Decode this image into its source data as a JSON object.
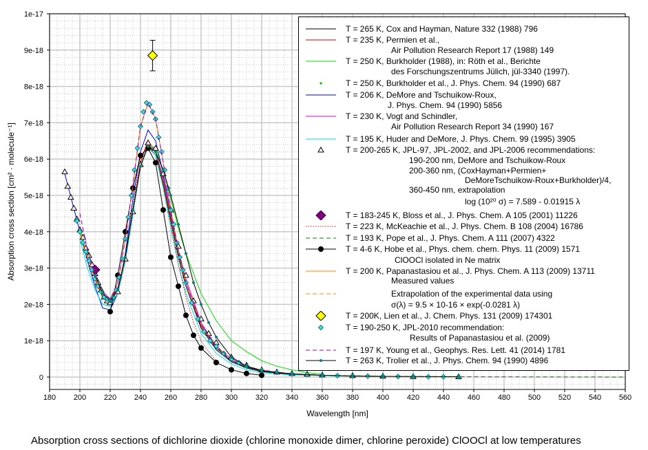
{
  "caption": "Absorption cross sections of dichlorine dioxide (chlorine  monoxide dimer, chlorine peroxide) ClOOCl at low temperatures",
  "chart_data": {
    "type": "line",
    "title": "Absorption cross sections of dichlorine dioxide (chlorine  monoxide dimer, chlorine peroxide) ClOOCl at low temperatures",
    "xlabel": "Wavelength [nm]",
    "ylabel": "Absorption cross section [cm² · molecule⁻¹]",
    "xlim": [
      180,
      560
    ],
    "ylim": [
      0,
      10
    ],
    "y_unit_multiplier": "1e-18",
    "x_ticks": [
      "180",
      "200",
      "220",
      "240",
      "260",
      "280",
      "300",
      "320",
      "340",
      "360",
      "380",
      "400",
      "420",
      "440",
      "460",
      "480",
      "500",
      "520",
      "540",
      "560"
    ],
    "y_ticks": [
      "0",
      "1e-18",
      "2e-18",
      "3e-18",
      "4e-18",
      "5e-18",
      "6e-18",
      "7e-18",
      "8e-18",
      "9e-18",
      "1e-17"
    ],
    "grid": true,
    "legend_position": "top-right",
    "series": [
      {
        "name": "cox",
        "color": "#000000",
        "style": "solid",
        "marker": "none",
        "x": [
          200,
          205,
          210,
          215,
          220,
          225,
          230,
          235,
          240,
          245,
          250,
          255,
          260,
          265,
          270,
          280,
          290,
          300,
          310,
          320,
          340,
          360,
          380,
          400
        ],
        "y": [
          4.0,
          3.3,
          2.7,
          2.2,
          2.0,
          2.3,
          3.2,
          4.5,
          5.8,
          6.35,
          6.1,
          5.3,
          4.3,
          3.3,
          2.5,
          1.35,
          0.75,
          0.42,
          0.25,
          0.15,
          0.07,
          0.04,
          0.03,
          0.02
        ]
      },
      {
        "name": "permien",
        "color": "#e00000",
        "style": "solid",
        "marker": "none",
        "x": [
          210,
          215,
          220,
          225,
          230,
          235,
          240,
          245,
          250,
          255,
          260,
          265,
          270,
          280,
          290,
          300,
          310,
          320,
          340
        ],
        "y": [
          2.7,
          2.3,
          2.05,
          2.4,
          3.3,
          4.6,
          5.9,
          6.5,
          6.2,
          5.4,
          4.4,
          3.4,
          2.6,
          1.4,
          0.8,
          0.45,
          0.27,
          0.17,
          0.08
        ]
      },
      {
        "name": "burkholder-1988",
        "color": "#00e000",
        "style": "solid",
        "marker": "none",
        "x": [
          200,
          205,
          210,
          215,
          220,
          225,
          230,
          235,
          240,
          245,
          250,
          255,
          260,
          265,
          270,
          280,
          290,
          300,
          310,
          320,
          330,
          340,
          350,
          360
        ],
        "y": [
          4.1,
          3.4,
          2.8,
          2.3,
          2.1,
          2.4,
          3.3,
          4.6,
          5.8,
          6.4,
          6.3,
          5.7,
          4.9,
          4.1,
          3.4,
          2.3,
          1.55,
          1.0,
          0.7,
          0.45,
          0.3,
          0.2,
          0.12,
          0.08
        ]
      },
      {
        "name": "burkholder-1990",
        "color": "#00c000",
        "style": "none",
        "marker": "dot",
        "x": [
          200,
          205,
          210,
          215,
          220,
          225,
          230,
          235,
          240,
          245,
          250,
          255,
          260,
          265,
          270,
          280,
          290,
          300,
          310,
          320,
          340,
          360
        ],
        "y": [
          4.1,
          3.4,
          2.8,
          2.3,
          2.05,
          2.4,
          3.3,
          4.6,
          5.8,
          6.45,
          6.3,
          5.5,
          4.6,
          3.6,
          2.8,
          1.6,
          0.95,
          0.55,
          0.33,
          0.2,
          0.1,
          0.06
        ]
      },
      {
        "name": "demore",
        "color": "#0000e0",
        "style": "solid",
        "marker": "none",
        "x": [
          190,
          195,
          200,
          205,
          210,
          215,
          220,
          225,
          230,
          235,
          240,
          245,
          250,
          255,
          260,
          265,
          270,
          280,
          290,
          300,
          310,
          320,
          340,
          360
        ],
        "y": [
          5.6,
          4.8,
          4.0,
          3.2,
          2.5,
          1.9,
          1.85,
          2.3,
          3.4,
          4.9,
          6.2,
          6.8,
          6.5,
          5.6,
          4.5,
          3.5,
          2.6,
          1.45,
          0.8,
          0.45,
          0.27,
          0.17,
          0.08,
          0.05
        ]
      },
      {
        "name": "vogt",
        "color": "#e000e0",
        "style": "solid",
        "marker": "none",
        "x": [
          205,
          210,
          215,
          220,
          225,
          230,
          235,
          240,
          245,
          250,
          255,
          260,
          265,
          270,
          280,
          290,
          300,
          310,
          320,
          340,
          360
        ],
        "y": [
          3.5,
          2.9,
          2.35,
          2.15,
          2.45,
          3.3,
          4.6,
          5.8,
          6.4,
          6.2,
          5.5,
          4.5,
          3.5,
          2.7,
          1.5,
          0.85,
          0.5,
          0.3,
          0.18,
          0.09,
          0.05
        ]
      },
      {
        "name": "huder",
        "color": "#00e0e0",
        "style": "solid",
        "marker": "none",
        "x": [
          200,
          205,
          210,
          215,
          220,
          225,
          230,
          235,
          240,
          245,
          250,
          255,
          260,
          265,
          270,
          280,
          290,
          300,
          310,
          320,
          340,
          360,
          380,
          400
        ],
        "y": [
          3.8,
          3.0,
          2.4,
          2.0,
          1.95,
          2.3,
          3.2,
          4.5,
          5.8,
          6.4,
          6.1,
          5.2,
          4.1,
          3.1,
          2.3,
          1.2,
          0.65,
          0.36,
          0.2,
          0.12,
          0.06,
          0.04,
          0.02,
          0.01
        ]
      },
      {
        "name": "jpl-2006",
        "color": "#000000",
        "style": "none",
        "marker": "triangle",
        "x": [
          190,
          192,
          194,
          196,
          198,
          200,
          202,
          204,
          206,
          208,
          210,
          212,
          214,
          216,
          218,
          220,
          225,
          230,
          235,
          240,
          245,
          250,
          255,
          260,
          265,
          270,
          275,
          280,
          285,
          290,
          300,
          310,
          320,
          330,
          340,
          350,
          360,
          380,
          400,
          420,
          450
        ],
        "y": [
          5.65,
          5.25,
          4.95,
          4.65,
          4.35,
          4.05,
          3.85,
          3.55,
          3.35,
          3.1,
          2.85,
          2.6,
          2.4,
          2.2,
          2.1,
          2.05,
          2.35,
          3.25,
          4.55,
          5.85,
          6.45,
          6.3,
          5.6,
          4.6,
          3.6,
          2.8,
          2.1,
          1.6,
          1.2,
          0.95,
          0.55,
          0.33,
          0.2,
          0.14,
          0.1,
          0.08,
          0.06,
          0.04,
          0.025,
          0.015,
          0.01
        ]
      },
      {
        "name": "bloss",
        "color": "#800080",
        "style": "none",
        "marker": "big-diamond",
        "x": [
          210
        ],
        "y": [
          2.95
        ]
      },
      {
        "name": "mckeachie",
        "color": "#ff0000",
        "style": "dotted",
        "marker": "none",
        "x": [
          215,
          220,
          225,
          230,
          235,
          240,
          245,
          250,
          255,
          260,
          265,
          270,
          275,
          280,
          285,
          290
        ],
        "y": [
          2.4,
          2.1,
          2.45,
          3.35,
          4.7,
          6.0,
          6.5,
          6.2,
          5.3,
          4.2,
          3.1,
          2.2,
          1.5,
          1.0,
          0.7,
          0.45
        ]
      },
      {
        "name": "pope",
        "color": "#008000",
        "style": "dashed",
        "marker": "none",
        "x": [
          215,
          220,
          225,
          230,
          235,
          240,
          245,
          250,
          255,
          260,
          265,
          270,
          280,
          290,
          300,
          310,
          320,
          340,
          360,
          400,
          450,
          500,
          560
        ],
        "y": [
          2.3,
          2.1,
          2.4,
          3.3,
          4.6,
          5.8,
          6.4,
          6.2,
          5.4,
          4.4,
          3.4,
          2.6,
          1.45,
          0.82,
          0.47,
          0.28,
          0.17,
          0.08,
          0.05,
          0.02,
          0.01,
          0.005,
          0.0
        ]
      },
      {
        "name": "hobe",
        "color": "#000000",
        "style": "solid",
        "marker": "big-dot",
        "x": [
          220,
          225,
          230,
          235,
          240,
          245,
          250,
          255,
          260,
          265,
          270,
          275,
          280,
          290,
          300,
          310,
          320
        ],
        "y": [
          1.8,
          2.8,
          4.0,
          5.2,
          6.1,
          6.3,
          5.9,
          4.6,
          3.3,
          2.5,
          1.7,
          1.15,
          0.8,
          0.4,
          0.2,
          0.1,
          0.05
        ]
      },
      {
        "name": "papanastasiou-measured",
        "color": "#ff8000",
        "style": "solid",
        "marker": "none",
        "x": [
          200,
          205,
          210,
          215,
          220,
          225,
          230,
          235,
          240,
          245,
          250,
          255,
          260,
          265,
          270,
          280,
          290,
          300,
          310,
          320,
          340,
          360,
          380,
          400,
          420
        ],
        "y": [
          4.0,
          3.3,
          2.7,
          2.25,
          2.1,
          2.6,
          3.8,
          5.3,
          6.9,
          7.55,
          7.1,
          5.9,
          4.6,
          3.5,
          2.6,
          1.45,
          0.85,
          0.5,
          0.3,
          0.19,
          0.09,
          0.05,
          0.03,
          0.02,
          0.01
        ]
      },
      {
        "name": "papanastasiou-extrapolation",
        "color": "#ff8000",
        "style": "dashed",
        "marker": "none",
        "x": [
          420,
          450
        ],
        "y": [
          0.007,
          0.003
        ]
      },
      {
        "name": "lien",
        "color": "#ffff00",
        "style": "none",
        "marker": "yellow-diamond",
        "x": [
          248
        ],
        "y": [
          8.85
        ],
        "error": [
          0.42
        ]
      },
      {
        "name": "jpl-2010",
        "color": "#00c0c0",
        "style": "none",
        "marker": "cyan-diamond",
        "x": [
          198,
          200,
          202,
          204,
          206,
          208,
          210,
          212,
          214,
          216,
          218,
          220,
          222,
          224,
          226,
          228,
          230,
          232,
          234,
          236,
          238,
          240,
          242,
          244,
          246,
          248,
          250,
          252,
          254,
          256,
          258,
          260,
          262,
          264,
          266,
          268,
          270,
          274,
          278,
          282,
          286,
          290,
          295,
          300,
          305,
          310,
          320,
          330,
          340,
          350,
          360,
          370,
          380,
          390,
          400,
          410,
          420,
          430,
          440,
          450
        ],
        "y": [
          4.3,
          4.0,
          3.7,
          3.45,
          3.2,
          2.95,
          2.7,
          2.5,
          2.35,
          2.2,
          2.15,
          2.1,
          2.2,
          2.4,
          2.75,
          3.25,
          3.8,
          4.4,
          5.0,
          5.7,
          6.3,
          6.9,
          7.3,
          7.55,
          7.5,
          7.3,
          7.1,
          6.6,
          6.2,
          5.7,
          5.2,
          4.6,
          4.2,
          3.7,
          3.3,
          2.95,
          2.6,
          2.05,
          1.6,
          1.25,
          1.0,
          0.85,
          0.65,
          0.5,
          0.4,
          0.3,
          0.19,
          0.13,
          0.09,
          0.07,
          0.05,
          0.04,
          0.03,
          0.025,
          0.02,
          0.015,
          0.012,
          0.01,
          0.008,
          0.006
        ]
      },
      {
        "name": "young",
        "color": "#a000a0",
        "style": "dashed",
        "marker": "none",
        "x": [
          200,
          205,
          210,
          215,
          220,
          225,
          230,
          235,
          240,
          245,
          250,
          255,
          260,
          265,
          270,
          280,
          290,
          300,
          310,
          320,
          340,
          360
        ],
        "y": [
          4.5,
          3.5,
          2.8,
          2.3,
          2.15,
          2.6,
          3.8,
          5.3,
          6.9,
          7.55,
          7.1,
          5.9,
          4.6,
          3.5,
          2.6,
          1.45,
          0.85,
          0.5,
          0.3,
          0.19,
          0.09,
          0.05
        ]
      },
      {
        "name": "trolier",
        "color": "#000000",
        "style": "solid",
        "marker": "teal-dot",
        "x": [
          210,
          215,
          220,
          225,
          230,
          235,
          240,
          245,
          250,
          255,
          260,
          265,
          270,
          275,
          280,
          285,
          290,
          300,
          310,
          320,
          330,
          340,
          360,
          380,
          400,
          420,
          450
        ],
        "y": [
          2.8,
          2.3,
          2.1,
          2.4,
          3.3,
          4.6,
          5.8,
          6.35,
          6.2,
          5.7,
          5.0,
          4.2,
          3.4,
          2.6,
          2.0,
          1.5,
          1.1,
          0.55,
          0.3,
          0.18,
          0.12,
          0.09,
          0.05,
          0.03,
          0.02,
          0.015,
          0.01
        ]
      }
    ]
  },
  "legend": [
    {
      "sample": "solid",
      "color": "#000000",
      "lines": [
        "T = 265 K, Cox and Hayman, Nature 332 (1988) 796"
      ]
    },
    {
      "sample": "solid",
      "color": "#e00000",
      "lines": [
        "T = 235 K, Permien et al.,",
        "Air Pollution Research Report 17 (1988) 149"
      ]
    },
    {
      "sample": "solid",
      "color": "#00e000",
      "lines": [
        "T = 250 K, Burkholder (1988), in: Röth et al., Berichte",
        "des Forschungszentrums Jülich, jül-3340 (1997)."
      ]
    },
    {
      "sample": "dot",
      "color": "#00c000",
      "lines": [
        "T = 250 K, Burkholder et al., J. Phys. Chem. 94 (1990) 687"
      ]
    },
    {
      "sample": "solid",
      "color": "#0000c0",
      "lines": [
        "T = 206 K, DeMore and Tschuikow-Roux,",
        "J. Phys. Chem. 94 (1990) 5856"
      ]
    },
    {
      "sample": "solid",
      "color": "#e000e0",
      "lines": [
        "T = 230 K, Vogt and Schindler,",
        "Air Pollution Research Report 34 (1990) 167"
      ]
    },
    {
      "sample": "solid",
      "color": "#00e0e0",
      "lines": [
        "T = 195 K, Huder and DeMore, J. Phys. Chem. 99 (1995) 3905"
      ]
    },
    {
      "sample": "triangle",
      "color": "#000000",
      "lines": [
        "T = 200-265 K, JPL-97, JPL-2002, and JPL-2006 recommendations:",
        "190-200 nm, DeMore and Tschuikow-Roux",
        "200-360 nm, (CoxHayman+Permien+",
        "DeMoreTschuikow-Roux+Burkholder)/4,",
        "360-450 nm, extrapolation",
        "log (10²⁰ σ) = 7.589 - 0.01915 λ"
      ]
    },
    {
      "sample": "big-diamond",
      "color": "#800080",
      "lines": [
        "T = 183-245 K, Bloss et al., J. Phys. Chem. A 105 (2001) 11226"
      ]
    },
    {
      "sample": "dotted",
      "color": "#ff0000",
      "lines": [
        "T = 223 K, McKeachie et al., J. Phys. Chem. B 108 (2004) 16786"
      ]
    },
    {
      "sample": "dashed",
      "color": "#008000",
      "lines": [
        "T = 193 K, Pope et al., J. Phys. Chem. A 111 (2007) 4322"
      ]
    },
    {
      "sample": "big-dot",
      "color": "#000000",
      "lines": [
        "T = 4-6 K, Hobe et al., Phys. chem. chem. Phys. 11 (2009) 1571",
        "ClOOCl isolated in Ne matrix"
      ]
    },
    {
      "sample": "solid",
      "color": "#ff8000",
      "lines": [
        "T = 200 K, Papanastasiou et al., J. Phys. Chem. A 113 (2009) 13711",
        "Measured values"
      ]
    },
    {
      "sample": "dashed",
      "color": "#ff8000",
      "lines": [
        "Extrapolation of the experimental data using",
        "σ(λ) = 9.5 × 10-16 × exp(-0.0281 λ)"
      ]
    },
    {
      "sample": "yellow-diamond",
      "color": "#ffff00",
      "lines": [
        "T = 200K, Lien et al., J. Chem. Phys. 131 (2009) 174301"
      ]
    },
    {
      "sample": "cyan-diamond",
      "color": "#00c0c0",
      "lines": [
        "T = 190-250 K, JPL-2010 recommendation:",
        "Results of Papanastasiou et al. (2009)"
      ]
    },
    {
      "sample": "dashed",
      "color": "#a000a0",
      "lines": [
        "T = 197 K, Young et al., Geophys. Res. Lett. 41 (2014) 1781"
      ]
    },
    {
      "sample": "teal-dot",
      "color": "#000000",
      "lines": [
        "T = 263 K, Trolier et al., J. Phys. Chem. 94 (1990) 4896"
      ]
    }
  ]
}
